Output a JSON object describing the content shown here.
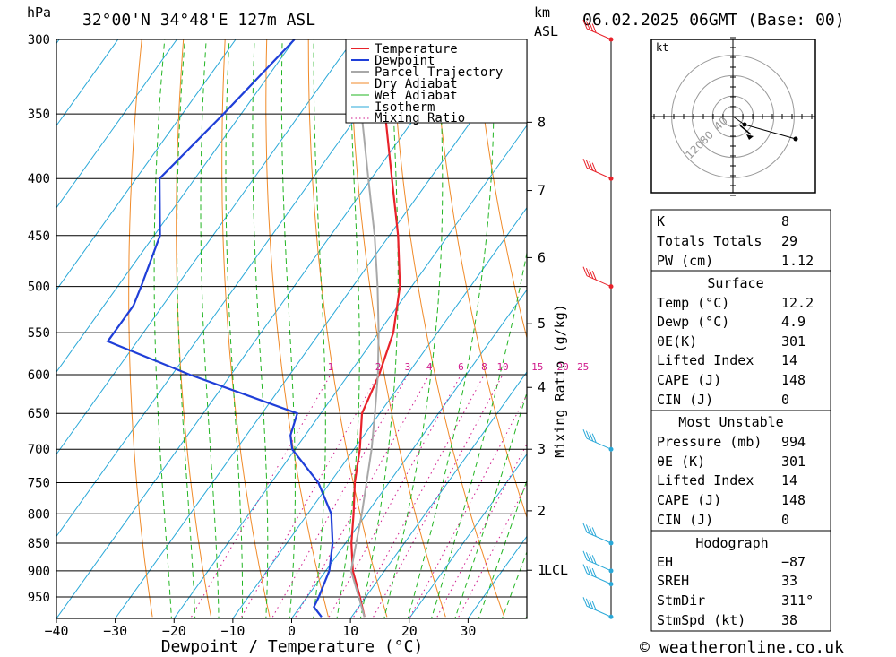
{
  "header": {
    "pressure_unit": "hPa",
    "location": "32°00'N  34°48'E  127m  ASL",
    "km_label": "km",
    "asl_label": "ASL",
    "datetime": "06.02.2025  06GMT  (Base: 00)"
  },
  "chart_data": {
    "type": "skew-t",
    "title": "32°00'N 34°48'E 127m ASL",
    "xlabel": "Dewpoint / Temperature (°C)",
    "ylabel": "hPa",
    "pressure_levels": [
      300,
      350,
      400,
      450,
      500,
      550,
      600,
      650,
      700,
      750,
      800,
      850,
      900,
      950
    ],
    "pressure_tick_labels": [
      "300",
      "350",
      "400",
      "450",
      "500",
      "550",
      "600",
      "650",
      "700",
      "750",
      "800",
      "850",
      "900",
      "950"
    ],
    "temperature_ticks": [
      -40,
      -30,
      -20,
      -10,
      0,
      10,
      20,
      30
    ],
    "temperature_tick_labels": [
      "−40",
      "−30",
      "−20",
      "−10",
      "0",
      "10",
      "20",
      "30"
    ],
    "plim": [
      300,
      990
    ],
    "xlim": [
      -40,
      40
    ],
    "km_ticks": [
      {
        "km": 8,
        "p": 356,
        "label": "8"
      },
      {
        "km": 7,
        "p": 410,
        "label": "7"
      },
      {
        "km": 6,
        "p": 471,
        "label": "6"
      },
      {
        "km": 5,
        "p": 540,
        "label": "5"
      },
      {
        "km": 4,
        "p": 616,
        "label": "4"
      },
      {
        "km": 3,
        "p": 700,
        "label": "3"
      },
      {
        "km": 2,
        "p": 795,
        "label": "2"
      },
      {
        "km": 1,
        "p": 899,
        "label": "1"
      }
    ],
    "lcl": {
      "p": 899,
      "label": "LCL"
    },
    "mixing_ratio_label": "Mixing Ratio (g/kg)",
    "mixing_ratios": [
      1,
      2,
      3,
      4,
      6,
      8,
      10,
      15,
      20,
      25
    ],
    "mixing_ratio_labels": [
      "1",
      "2",
      "3",
      "4",
      "6",
      "8",
      "10",
      "15",
      "20",
      "25"
    ],
    "legend": [
      "Temperature",
      "Dewpoint",
      "Parcel Trajectory",
      "Dry Adiabat",
      "Wet Adiabat",
      "Isotherm",
      "Mixing Ratio"
    ],
    "series": [
      {
        "name": "Temperature",
        "color": "#e8222a",
        "points": [
          {
            "p": 990,
            "t": 12.2
          },
          {
            "p": 950,
            "t": 9.0
          },
          {
            "p": 900,
            "t": 4.6
          },
          {
            "p": 850,
            "t": 1.0
          },
          {
            "p": 800,
            "t": -2.2
          },
          {
            "p": 750,
            "t": -5.8
          },
          {
            "p": 700,
            "t": -9.0
          },
          {
            "p": 650,
            "t": -13.0
          },
          {
            "p": 600,
            "t": -14.8
          },
          {
            "p": 550,
            "t": -17.5
          },
          {
            "p": 500,
            "t": -22.0
          },
          {
            "p": 450,
            "t": -28.5
          },
          {
            "p": 400,
            "t": -36.5
          },
          {
            "p": 350,
            "t": -45.5
          },
          {
            "p": 300,
            "t": -52.0
          }
        ]
      },
      {
        "name": "Dewpoint",
        "color": "#1f3fd8",
        "points": [
          {
            "p": 990,
            "t": 4.9
          },
          {
            "p": 970,
            "t": 2.4
          },
          {
            "p": 950,
            "t": 2.0
          },
          {
            "p": 900,
            "t": 0.6
          },
          {
            "p": 850,
            "t": -2.2
          },
          {
            "p": 800,
            "t": -6.0
          },
          {
            "p": 750,
            "t": -12.0
          },
          {
            "p": 700,
            "t": -20.5
          },
          {
            "p": 680,
            "t": -22.5
          },
          {
            "p": 650,
            "t": -24.0
          },
          {
            "p": 600,
            "t": -47.0
          },
          {
            "p": 560,
            "t": -65.0
          },
          {
            "p": 520,
            "t": -65.0
          },
          {
            "p": 500,
            "t": -66.0
          },
          {
            "p": 450,
            "t": -69.0
          },
          {
            "p": 400,
            "t": -76.0
          },
          {
            "p": 350,
            "t": -73.0
          },
          {
            "p": 300,
            "t": -70.0
          }
        ]
      },
      {
        "name": "Parcel Trajectory",
        "color": "#a8a8a8",
        "points": [
          {
            "p": 990,
            "t": 12.2
          },
          {
            "p": 950,
            "t": 8.8
          },
          {
            "p": 900,
            "t": 4.3
          },
          {
            "p": 850,
            "t": 1.8
          },
          {
            "p": 800,
            "t": -0.8
          },
          {
            "p": 750,
            "t": -3.8
          },
          {
            "p": 700,
            "t": -7.0
          },
          {
            "p": 650,
            "t": -10.8
          },
          {
            "p": 600,
            "t": -15.0
          },
          {
            "p": 550,
            "t": -20.0
          },
          {
            "p": 500,
            "t": -25.8
          },
          {
            "p": 450,
            "t": -32.5
          },
          {
            "p": 400,
            "t": -40.5
          },
          {
            "p": 350,
            "t": -49.5
          },
          {
            "p": 300,
            "t": -60.0
          }
        ]
      }
    ],
    "wind_barbs": [
      {
        "p": 300,
        "color": "#e8222a"
      },
      {
        "p": 400,
        "color": "#e8222a"
      },
      {
        "p": 500,
        "color": "#e8222a"
      },
      {
        "p": 700,
        "color": "#29a8d8"
      },
      {
        "p": 850,
        "color": "#29a8d8"
      },
      {
        "p": 900,
        "color": "#29a8d8"
      },
      {
        "p": 925,
        "color": "#29a8d8"
      },
      {
        "p": 990,
        "color": "#29a8d8"
      }
    ],
    "hodograph": {
      "unit": "kt",
      "ring_labels": [
        "40",
        "80",
        "120"
      ],
      "trace": [
        {
          "dir": 311,
          "spd": 9
        },
        {
          "dir": 300,
          "spd": 38
        }
      ]
    }
  },
  "indices": {
    "top": [
      {
        "label": "K",
        "value": "8"
      },
      {
        "label": "Totals Totals",
        "value": "29"
      },
      {
        "label": "PW (cm)",
        "value": "1.12"
      }
    ],
    "surface": {
      "title": "Surface",
      "rows": [
        {
          "label": "Temp (°C)",
          "value": "12.2"
        },
        {
          "label": "Dewp (°C)",
          "value": "4.9"
        },
        {
          "label": "θE(K)",
          "value": "301"
        },
        {
          "label": "Lifted Index",
          "value": "14"
        },
        {
          "label": "CAPE (J)",
          "value": "148"
        },
        {
          "label": "CIN (J)",
          "value": "0"
        }
      ]
    },
    "most_unstable": {
      "title": "Most Unstable",
      "rows": [
        {
          "label": "Pressure (mb)",
          "value": "994"
        },
        {
          "label": "θE (K)",
          "value": "301"
        },
        {
          "label": "Lifted Index",
          "value": "14"
        },
        {
          "label": "CAPE (J)",
          "value": "148"
        },
        {
          "label": "CIN (J)",
          "value": "0"
        }
      ]
    },
    "hodograph": {
      "title": "Hodograph",
      "rows": [
        {
          "label": "EH",
          "value": "−87"
        },
        {
          "label": "SREH",
          "value": "33"
        },
        {
          "label": "StmDir",
          "value": "311°"
        },
        {
          "label": "StmSpd (kt)",
          "value": "38"
        }
      ]
    }
  },
  "footer": {
    "copyright_symbol": "©",
    "site": "weatheronline.co.uk"
  },
  "colors": {
    "temperature": "#e8222a",
    "dewpoint": "#1f3fd8",
    "parcel": "#a8a8a8",
    "dry_adiabat": "#f08a28",
    "wet_adiabat": "#22b522",
    "isotherm": "#29a8d8",
    "mixing_ratio": "#d01a8c"
  }
}
